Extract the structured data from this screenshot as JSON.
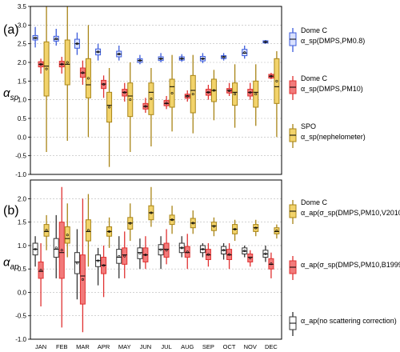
{
  "chart_data": [
    {
      "type": "box",
      "panel_label": "(a)",
      "ylabel": "α",
      "ylabel_sub": "sp",
      "ylim": [
        -1.0,
        3.5
      ],
      "yticks": [
        "3.5",
        "3.0",
        "2.5",
        "2.0",
        "1.5",
        "1.0",
        "0.5",
        "0.0",
        "-0.5",
        "-1.0"
      ],
      "grid": true,
      "categories": [
        "JAN",
        "FEB",
        "MAR",
        "APR",
        "MAY",
        "JUN",
        "JUL",
        "AUG",
        "SEP",
        "OCT",
        "NOV",
        "DEC"
      ],
      "series": [
        {
          "legend": [
            "Dome C",
            "α_sp(DMPS,PM0.8)"
          ],
          "color": "#3b5bdb",
          "fill": "#d9e1ff",
          "boxes": [
            {
              "lo": 2.4,
              "q1": 2.6,
              "med": 2.65,
              "q3": 2.72,
              "hi": 2.95
            },
            {
              "lo": 2.45,
              "q1": 2.57,
              "med": 2.62,
              "q3": 2.7,
              "hi": 2.9
            },
            {
              "lo": 2.2,
              "q1": 2.38,
              "med": 2.5,
              "q3": 2.62,
              "hi": 2.8
            },
            {
              "lo": 2.05,
              "q1": 2.2,
              "med": 2.28,
              "q3": 2.36,
              "hi": 2.5
            },
            {
              "lo": 2.05,
              "q1": 2.15,
              "med": 2.22,
              "q3": 2.3,
              "hi": 2.45
            },
            {
              "lo": 1.95,
              "q1": 2.0,
              "med": 2.05,
              "q3": 2.1,
              "hi": 2.2
            },
            {
              "lo": 2.0,
              "q1": 2.05,
              "med": 2.1,
              "q3": 2.15,
              "hi": 2.25
            },
            {
              "lo": 2.02,
              "q1": 2.06,
              "med": 2.1,
              "q3": 2.15,
              "hi": 2.22
            },
            {
              "lo": 1.98,
              "q1": 2.04,
              "med": 2.1,
              "q3": 2.16,
              "hi": 2.25
            },
            {
              "lo": 2.05,
              "q1": 2.1,
              "med": 2.15,
              "q3": 2.18,
              "hi": 2.25
            },
            {
              "lo": 2.1,
              "q1": 2.18,
              "med": 2.25,
              "q3": 2.35,
              "hi": 2.45
            },
            {
              "lo": 2.5,
              "q1": 2.52,
              "med": 2.55,
              "q3": 2.58,
              "hi": 2.6
            }
          ]
        },
        {
          "legend": [
            "Dome C",
            "α_sp(DMPS,PM10)"
          ],
          "color": "#e03131",
          "fill": "#f27a7a",
          "boxes": [
            {
              "lo": 1.7,
              "q1": 1.88,
              "med": 1.95,
              "q3": 2.02,
              "hi": 2.1
            },
            {
              "lo": 1.7,
              "q1": 1.88,
              "med": 1.95,
              "q3": 2.03,
              "hi": 2.15
            },
            {
              "lo": 1.4,
              "q1": 1.6,
              "med": 1.72,
              "q3": 1.85,
              "hi": 2.05
            },
            {
              "lo": 1.05,
              "q1": 1.3,
              "med": 1.42,
              "q3": 1.52,
              "hi": 1.65
            },
            {
              "lo": 0.95,
              "q1": 1.1,
              "med": 1.2,
              "q3": 1.28,
              "hi": 1.45
            },
            {
              "lo": 0.65,
              "q1": 0.75,
              "med": 0.82,
              "q3": 0.9,
              "hi": 1.05
            },
            {
              "lo": 0.75,
              "q1": 0.84,
              "med": 0.9,
              "q3": 0.98,
              "hi": 1.1
            },
            {
              "lo": 0.95,
              "q1": 1.04,
              "med": 1.1,
              "q3": 1.15,
              "hi": 1.25
            },
            {
              "lo": 1.0,
              "q1": 1.12,
              "med": 1.2,
              "q3": 1.28,
              "hi": 1.4
            },
            {
              "lo": 1.1,
              "q1": 1.18,
              "med": 1.25,
              "q3": 1.3,
              "hi": 1.45
            },
            {
              "lo": 1.0,
              "q1": 1.1,
              "med": 1.2,
              "q3": 1.28,
              "hi": 1.45
            },
            {
              "lo": 1.55,
              "q1": 1.58,
              "med": 1.63,
              "q3": 1.68,
              "hi": 1.72
            }
          ]
        },
        {
          "legend": [
            "SPO",
            "α_sp(nephelometer)"
          ],
          "color": "#a88416",
          "fill": "#f2d36b",
          "boxes": [
            {
              "lo": -0.4,
              "q1": 1.1,
              "med": 1.9,
              "q3": 2.55,
              "hi": 3.5
            },
            {
              "lo": -0.1,
              "q1": 1.4,
              "med": 1.95,
              "q3": 2.6,
              "hi": 3.5
            },
            {
              "lo": 0.0,
              "q1": 1.05,
              "med": 1.4,
              "q3": 2.1,
              "hi": 3.0
            },
            {
              "lo": -0.8,
              "q1": 0.4,
              "med": 0.85,
              "q3": 1.2,
              "hi": 1.85
            },
            {
              "lo": -0.4,
              "q1": 0.55,
              "med": 1.1,
              "q3": 1.45,
              "hi": 2.0
            },
            {
              "lo": -0.25,
              "q1": 0.6,
              "med": 1.2,
              "q3": 1.45,
              "hi": 1.85
            },
            {
              "lo": 0.15,
              "q1": 0.8,
              "med": 1.35,
              "q3": 1.55,
              "hi": 2.2
            },
            {
              "lo": 0.1,
              "q1": 0.65,
              "med": 1.25,
              "q3": 1.65,
              "hi": 2.2
            },
            {
              "lo": 0.45,
              "q1": 0.95,
              "med": 1.25,
              "q3": 1.55,
              "hi": 1.8
            },
            {
              "lo": 0.25,
              "q1": 0.85,
              "med": 1.2,
              "q3": 1.45,
              "hi": 1.95
            },
            {
              "lo": 0.3,
              "q1": 0.8,
              "med": 1.2,
              "q3": 1.5,
              "hi": 1.95
            },
            {
              "lo": 0.0,
              "q1": 0.9,
              "med": 1.35,
              "q3": 2.1,
              "hi": 2.3
            }
          ]
        }
      ]
    },
    {
      "type": "box",
      "panel_label": "(b)",
      "ylabel": "α",
      "ylabel_sub": "ap",
      "ylim": [
        -1.0,
        2.4
      ],
      "yticks": [
        "2.0",
        "1.5",
        "1.0",
        "0.5",
        "0.0",
        "-0.5",
        "-1.0"
      ],
      "grid": true,
      "categories": [
        "JAN",
        "FEB",
        "MAR",
        "APR",
        "MAY",
        "JUN",
        "JUL",
        "AUG",
        "SEP",
        "OCT",
        "NOV",
        "DEC"
      ],
      "series": [
        {
          "legend": [
            "",
            "α_ap(no scattering correction)"
          ],
          "color": "#333333",
          "fill": "#ffffff",
          "boxes": [
            {
              "lo": 0.55,
              "q1": 0.8,
              "med": 0.92,
              "q3": 1.05,
              "hi": 1.2
            },
            {
              "lo": 0.3,
              "q1": 0.75,
              "med": 0.92,
              "q3": 1.15,
              "hi": 1.65
            },
            {
              "lo": -0.15,
              "q1": 0.4,
              "med": 0.65,
              "q3": 0.85,
              "hi": 1.35
            },
            {
              "lo": 0.15,
              "q1": 0.55,
              "med": 0.68,
              "q3": 0.8,
              "hi": 0.95
            },
            {
              "lo": 0.3,
              "q1": 0.62,
              "med": 0.75,
              "q3": 0.92,
              "hi": 1.2
            },
            {
              "lo": 0.5,
              "q1": 0.72,
              "med": 0.85,
              "q3": 0.95,
              "hi": 1.15
            },
            {
              "lo": 0.5,
              "q1": 0.8,
              "med": 0.92,
              "q3": 1.02,
              "hi": 1.2
            },
            {
              "lo": 0.75,
              "q1": 0.85,
              "med": 0.95,
              "q3": 1.05,
              "hi": 1.2
            },
            {
              "lo": 0.75,
              "q1": 0.85,
              "med": 0.92,
              "q3": 1.0,
              "hi": 1.05
            },
            {
              "lo": 0.7,
              "q1": 0.82,
              "med": 0.9,
              "q3": 0.98,
              "hi": 1.05
            },
            {
              "lo": 0.75,
              "q1": 0.82,
              "med": 0.88,
              "q3": 0.95,
              "hi": 1.0
            },
            {
              "lo": 0.65,
              "q1": 0.75,
              "med": 0.82,
              "q3": 0.9,
              "hi": 1.0
            }
          ]
        },
        {
          "legend": [
            "",
            "α_ap(σ_sp(DMPS,PM10,B1999))"
          ],
          "color": "#e03131",
          "fill": "#f27a7a",
          "boxes": [
            {
              "lo": -0.3,
              "q1": 0.3,
              "med": 0.45,
              "q3": 0.65,
              "hi": 1.05
            },
            {
              "lo": -0.75,
              "q1": 0.3,
              "med": 0.85,
              "q3": 1.5,
              "hi": 2.25
            },
            {
              "lo": -0.85,
              "q1": -0.25,
              "med": 0.35,
              "q3": 0.8,
              "hi": 2.0
            },
            {
              "lo": -0.1,
              "q1": 0.4,
              "med": 0.58,
              "q3": 0.75,
              "hi": 1.0
            },
            {
              "lo": 0.3,
              "q1": 0.6,
              "med": 0.8,
              "q3": 0.95,
              "hi": 1.3
            },
            {
              "lo": 0.5,
              "q1": 0.65,
              "med": 0.8,
              "q3": 0.95,
              "hi": 1.2
            },
            {
              "lo": 0.6,
              "q1": 0.75,
              "med": 0.92,
              "q3": 1.05,
              "hi": 1.35
            },
            {
              "lo": 0.5,
              "q1": 0.75,
              "med": 0.85,
              "q3": 0.98,
              "hi": 1.25
            },
            {
              "lo": 0.55,
              "q1": 0.7,
              "med": 0.8,
              "q3": 0.92,
              "hi": 1.05
            },
            {
              "lo": 0.5,
              "q1": 0.7,
              "med": 0.8,
              "q3": 0.92,
              "hi": 1.05
            },
            {
              "lo": 0.55,
              "q1": 0.65,
              "med": 0.75,
              "q3": 0.82,
              "hi": 0.9
            },
            {
              "lo": 0.3,
              "q1": 0.5,
              "med": 0.6,
              "q3": 0.72,
              "hi": 0.85
            }
          ]
        },
        {
          "legend": [
            "Dome C",
            "α_ap(σ_sp(DMPS,PM10,V2010))"
          ],
          "color": "#a88416",
          "fill": "#f2d36b",
          "boxes": [
            {
              "lo": 0.9,
              "q1": 1.2,
              "med": 1.3,
              "q3": 1.45,
              "hi": 1.65
            },
            {
              "lo": 0.75,
              "q1": 1.05,
              "med": 1.15,
              "q3": 1.4,
              "hi": 1.9
            },
            {
              "lo": 0.55,
              "q1": 1.1,
              "med": 1.3,
              "q3": 1.55,
              "hi": 2.1
            },
            {
              "lo": 0.95,
              "q1": 1.2,
              "med": 1.3,
              "q3": 1.4,
              "hi": 1.6
            },
            {
              "lo": 1.1,
              "q1": 1.35,
              "med": 1.48,
              "q3": 1.6,
              "hi": 1.9
            },
            {
              "lo": 1.4,
              "q1": 1.55,
              "med": 1.7,
              "q3": 1.85,
              "hi": 2.25
            },
            {
              "lo": 1.25,
              "q1": 1.45,
              "med": 1.55,
              "q3": 1.65,
              "hi": 1.85
            },
            {
              "lo": 1.25,
              "q1": 1.38,
              "med": 1.48,
              "q3": 1.58,
              "hi": 1.75
            },
            {
              "lo": 1.2,
              "q1": 1.32,
              "med": 1.42,
              "q3": 1.5,
              "hi": 1.6
            },
            {
              "lo": 1.1,
              "q1": 1.25,
              "med": 1.35,
              "q3": 1.45,
              "hi": 1.55
            },
            {
              "lo": 1.2,
              "q1": 1.3,
              "med": 1.38,
              "q3": 1.45,
              "hi": 1.55
            },
            {
              "lo": 1.15,
              "q1": 1.25,
              "med": 1.3,
              "q3": 1.38,
              "hi": 1.45
            }
          ]
        }
      ]
    }
  ]
}
